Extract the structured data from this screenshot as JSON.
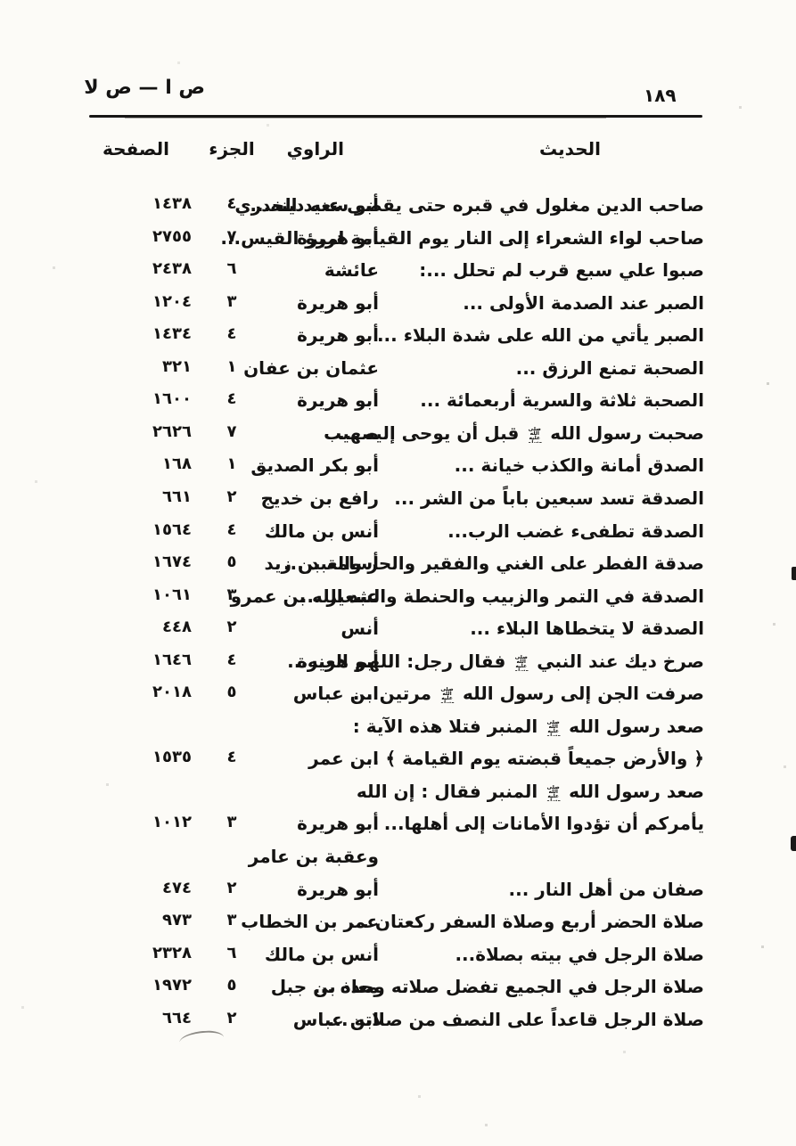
{
  "page_header": {
    "section_range": "ص ا — ص لا",
    "page_number": "١٨٩"
  },
  "table": {
    "columns": {
      "hadith": "الحديث",
      "narrator": "الراوي",
      "volume": "الجزء",
      "page": "الصفحة"
    },
    "rows": [
      {
        "hadith": "صاحب الدين مغلول في قبره حتى يقضى عنه دينه...",
        "narrator": "أبو سعيد الخدري",
        "volume": "٤",
        "page": "١٤٣٨"
      },
      {
        "hadith": "صاحب لواء الشعراء إلى النار يوم القيامة امرؤ القيس...",
        "narrator": "أبو هريرة",
        "volume": "٧",
        "page": "٢٧٥٥"
      },
      {
        "hadith": "صبوا علي سبع قرب لم تحلل ...:",
        "narrator": "عائشة",
        "volume": "٦",
        "page": "٢٤٣٨"
      },
      {
        "hadith": "الصبر عند الصدمة الأولى ...",
        "narrator": "أبو هريرة",
        "volume": "٣",
        "page": "١٢٠٤"
      },
      {
        "hadith": "الصبر يأتي من الله على شدة البلاء ...",
        "narrator": "أبو هريرة",
        "volume": "٤",
        "page": "١٤٣٤"
      },
      {
        "hadith": "الصحبة تمنع الرزق ...",
        "narrator": "عثمان بن عفان",
        "volume": "١",
        "page": "٣٢١"
      },
      {
        "hadith": "الصحبة ثلاثة والسرية أربعمائة ...",
        "narrator": "أبو هريرة",
        "volume": "٤",
        "page": "١٦٠٠"
      },
      {
        "hadith": "صحبت رسول الله ﷺ قبل أن يوحى إليه ...",
        "narrator": "صهيب",
        "volume": "٧",
        "page": "٢٦٢٦"
      },
      {
        "hadith": "الصدق أمانة والكذب خيانة ...",
        "narrator": "أبو بكر الصديق",
        "volume": "١",
        "page": "١٦٨"
      },
      {
        "hadith": "الصدقة تسد سبعين باباً من الشر ...",
        "narrator": "رافع بن خديج",
        "volume": "٢",
        "page": "٦٦١"
      },
      {
        "hadith": "الصدقة تطفىء غضب الرب...",
        "narrator": "أنس بن مالك",
        "volume": "٤",
        "page": "١٥٦٤"
      },
      {
        "hadith": "صدقة الفطر على الغني والفقير والحر والعبد ...",
        "narrator": "أسامة بن زيد",
        "volume": "٥",
        "page": "١٦٧٤"
      },
      {
        "hadith": "الصدقة في التمر والزبيب والحنطة والشعير ...",
        "narrator": "عبد الله بن عمرو",
        "volume": "٣",
        "page": "١٠٦١"
      },
      {
        "hadith": "الصدقة لا يتخطاها البلاء ...",
        "narrator": "أنس",
        "volume": "٢",
        "page": "٤٤٨"
      },
      {
        "hadith": "صرخ ديك عند النبي ﷺ فقال رجل: اللهم العنه...",
        "narrator": "أبو هريرة",
        "volume": "٤",
        "page": "١٦٤٦"
      },
      {
        "hadith": "صرفت الجن إلى رسول الله ﷺ مرتين ...",
        "narrator": "ابن عباس",
        "volume": "٥",
        "page": "٢٠١٨"
      },
      {
        "hadith": "صعد رسول الله ﷺ المنبر فتلا هذه الآية :",
        "narrator": "",
        "volume": "",
        "page": ""
      },
      {
        "hadith": "﴿ والأرض جميعاً قبضته يوم القيامة ﴾ ...",
        "narrator": "ابن عمر",
        "volume": "٤",
        "page": "١٥٣٥"
      },
      {
        "hadith": "صعد رسول الله ﷺ المنبر فقال : إن الله",
        "narrator": "",
        "volume": "",
        "page": ""
      },
      {
        "hadith": "يأمركم أن تؤدوا الأمانات إلى أهلها...",
        "narrator": "أبو هريرة",
        "volume": "٣",
        "page": "١٠١٢"
      },
      {
        "hadith": "",
        "narrator": "وعقبة بن عامر",
        "volume": "",
        "page": ""
      },
      {
        "hadith": "صفان من أهل النار ...",
        "narrator": "أبو هريرة",
        "volume": "٢",
        "page": "٤٧٤"
      },
      {
        "hadith": "صلاة الحضر أربع وصلاة السفر ركعتان ...",
        "narrator": "عمر بن الخطاب",
        "volume": "٣",
        "page": "٩٧٣"
      },
      {
        "hadith": "صلاة الرجل في بيته بصلاة...",
        "narrator": "أنس بن مالك",
        "volume": "٦",
        "page": "٢٣٢٨"
      },
      {
        "hadith": "صلاة الرجل في الجميع تفضل صلاته وحده ...",
        "narrator": "معاذ بن جبل",
        "volume": "٥",
        "page": "١٩٧٢"
      },
      {
        "hadith": "صلاة الرجل قاعداً على النصف من صلاته ...",
        "narrator": "ابن عباس",
        "volume": "٢",
        "page": "٦٦٤"
      }
    ]
  }
}
